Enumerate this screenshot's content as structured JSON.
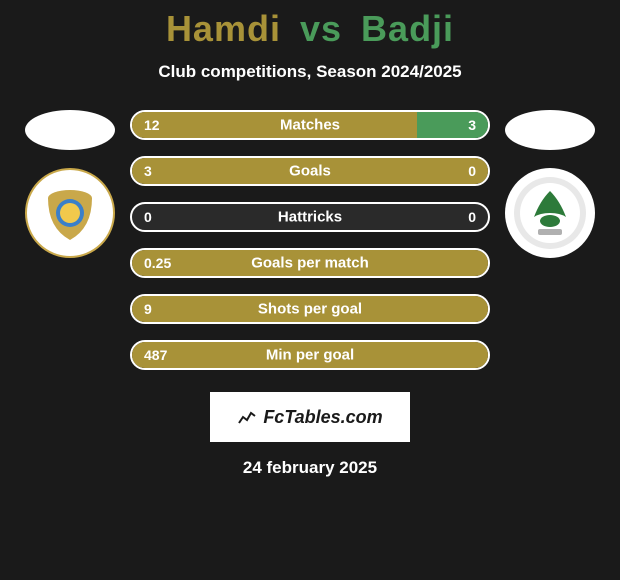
{
  "title": {
    "player1": "Hamdi",
    "vs": "vs",
    "player2": "Badji",
    "color1": "#a89238",
    "color2": "#4a9b5a"
  },
  "subtitle": "Club competitions, Season 2024/2025",
  "colors": {
    "left_fill": "#a89238",
    "right_fill": "#4a9b5a",
    "empty_fill": "#2a2a2a",
    "border": "#ffffff",
    "text": "#ffffff"
  },
  "stats": [
    {
      "label": "Matches",
      "left_val": "12",
      "right_val": "3",
      "left_pct": 80,
      "right_pct": 20
    },
    {
      "label": "Goals",
      "left_val": "3",
      "right_val": "0",
      "left_pct": 100,
      "right_pct": 0
    },
    {
      "label": "Hattricks",
      "left_val": "0",
      "right_val": "0",
      "left_pct": 0,
      "right_pct": 0
    },
    {
      "label": "Goals per match",
      "left_val": "0.25",
      "right_val": "",
      "left_pct": 100,
      "right_pct": 0
    },
    {
      "label": "Shots per goal",
      "left_val": "9",
      "right_val": "",
      "left_pct": 100,
      "right_pct": 0
    },
    {
      "label": "Min per goal",
      "left_val": "487",
      "right_val": "",
      "left_pct": 100,
      "right_pct": 0
    }
  ],
  "watermark": "FcTables.com",
  "date": "24 february 2025",
  "badges": {
    "left_icon": "club-badge-ismaily",
    "right_icon": "club-badge-elmasry"
  }
}
